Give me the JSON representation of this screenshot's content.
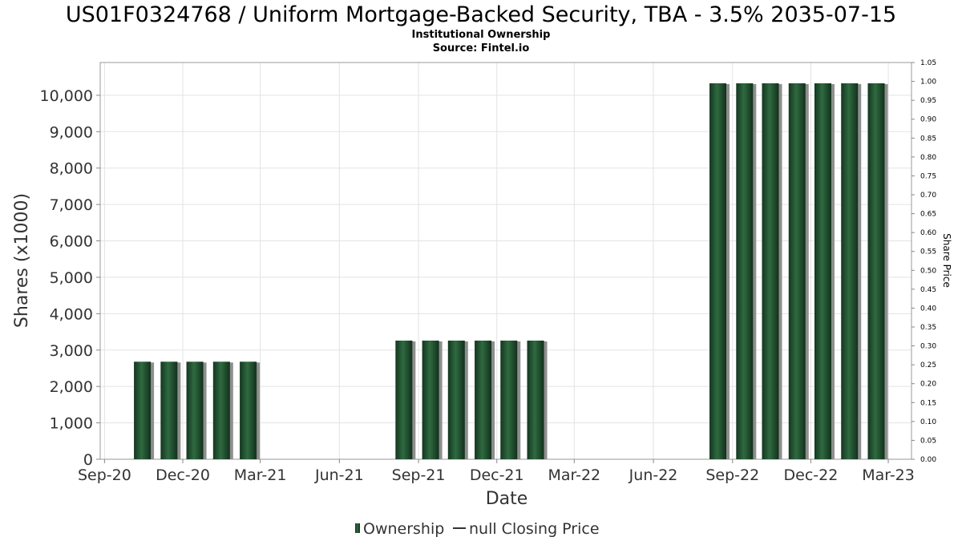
{
  "chart_data": {
    "type": "bar",
    "title": "US01F0324768 / Uniform Mortgage-Backed Security, TBA - 3.5% 2035-07-15",
    "subtitle_lines": [
      "Institutional Ownership",
      "Source: Fintel.io"
    ],
    "xlabel": "Date",
    "ylabel": "Shares (x1000)",
    "y2label": "Share Price",
    "x_tick_labels": [
      "Sep-20",
      "Dec-20",
      "Mar-21",
      "Jun-21",
      "Sep-21",
      "Dec-21",
      "Mar-22",
      "Jun-22",
      "Sep-22",
      "Dec-22",
      "Mar-23"
    ],
    "y_tick_labels": [
      "0",
      "1,000",
      "2,000",
      "3,000",
      "4,000",
      "5,000",
      "6,000",
      "7,000",
      "8,000",
      "9,000",
      "10,000"
    ],
    "y_ticks": [
      0,
      1000,
      2000,
      3000,
      4000,
      5000,
      6000,
      7000,
      8000,
      9000,
      10000
    ],
    "ylim": [
      0,
      10900
    ],
    "y2_tick_labels": [
      "0.00",
      "0.05",
      "0.10",
      "0.15",
      "0.20",
      "0.25",
      "0.30",
      "0.35",
      "0.40",
      "0.45",
      "0.50",
      "0.55",
      "0.60",
      "0.65",
      "0.70",
      "0.75",
      "0.80",
      "0.85",
      "0.90",
      "0.95",
      "1.00",
      "1.05"
    ],
    "y2_ticks": [
      0,
      0.05,
      0.1,
      0.15,
      0.2,
      0.25,
      0.3,
      0.35,
      0.4,
      0.45,
      0.5,
      0.55,
      0.6,
      0.65,
      0.7,
      0.75,
      0.8,
      0.85,
      0.9,
      0.95,
      1.0,
      1.05
    ],
    "y2lim": [
      0,
      1.05
    ],
    "xlim": [
      "2020-08-27",
      "2023-03-28"
    ],
    "x_tick_dates": [
      "2020-09-01",
      "2020-12-01",
      "2021-03-01",
      "2021-06-01",
      "2021-09-01",
      "2021-12-01",
      "2022-03-01",
      "2022-06-01",
      "2022-09-01",
      "2022-12-01",
      "2023-03-01"
    ],
    "series": [
      {
        "name": "Ownership",
        "color": "#1f4a2c",
        "points": [
          {
            "date": "2020-10-15",
            "value": 2680
          },
          {
            "date": "2020-11-15",
            "value": 2680
          },
          {
            "date": "2020-12-15",
            "value": 2680
          },
          {
            "date": "2021-01-15",
            "value": 2680
          },
          {
            "date": "2021-02-15",
            "value": 2680
          },
          {
            "date": "2021-08-15",
            "value": 3260
          },
          {
            "date": "2021-09-15",
            "value": 3260
          },
          {
            "date": "2021-10-15",
            "value": 3260
          },
          {
            "date": "2021-11-15",
            "value": 3260
          },
          {
            "date": "2021-12-15",
            "value": 3260
          },
          {
            "date": "2022-01-15",
            "value": 3260
          },
          {
            "date": "2022-08-15",
            "value": 10330
          },
          {
            "date": "2022-09-15",
            "value": 10330
          },
          {
            "date": "2022-10-15",
            "value": 10330
          },
          {
            "date": "2022-11-15",
            "value": 10330
          },
          {
            "date": "2022-12-15",
            "value": 10330
          },
          {
            "date": "2023-01-15",
            "value": 10330
          },
          {
            "date": "2023-02-15",
            "value": 10330
          }
        ]
      }
    ],
    "legend": {
      "placement": "bottom-center",
      "ownership_label": "Ownership",
      "price_label": "null Closing Price"
    },
    "grid": true
  }
}
